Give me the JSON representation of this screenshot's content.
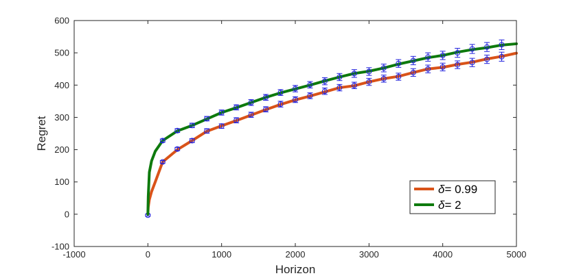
{
  "chart_data": {
    "type": "line",
    "xlabel": "Horizon",
    "ylabel": "Regret",
    "xlim": [
      -1000,
      5000
    ],
    "ylim": [
      -100,
      600
    ],
    "xticks": [
      -1000,
      0,
      1000,
      2000,
      3000,
      4000,
      5000
    ],
    "yticks": [
      -100,
      0,
      100,
      200,
      300,
      400,
      500,
      600
    ],
    "grid": false,
    "legend_position": "bottom-right",
    "errorbar_color": "#1f1fdc",
    "series": [
      {
        "name": "= 0.99",
        "legend_symbol": "δ",
        "color": "#d95319",
        "x": [
          0,
          5,
          20,
          50,
          100,
          200,
          400,
          600,
          800,
          1000,
          1200,
          1400,
          1600,
          1800,
          2000,
          2200,
          2400,
          2600,
          2800,
          3000,
          3200,
          3400,
          3600,
          3800,
          4000,
          4200,
          4400,
          4600,
          4800,
          5000
        ],
        "y": [
          0,
          22,
          45,
          70,
          100,
          162,
          200,
          228,
          257,
          274,
          290,
          307,
          324,
          340,
          354,
          366,
          379,
          392,
          398,
          410,
          420,
          427,
          439,
          450,
          455,
          464,
          471,
          481,
          489,
          499
        ],
        "errorbars": {
          "x": [
            0,
            200,
            400,
            600,
            800,
            1000,
            1200,
            1400,
            1600,
            1800,
            2000,
            2200,
            2400,
            2600,
            2800,
            3000,
            3200,
            3400,
            3600,
            3800,
            4000,
            4200,
            4400,
            4600,
            4800
          ],
          "y": [
            -3,
            162,
            202,
            228,
            258,
            273,
            291,
            308,
            325,
            341,
            355,
            367,
            381,
            392,
            399,
            410,
            420,
            426,
            439,
            450,
            456,
            463,
            470,
            480,
            488
          ],
          "err": [
            3,
            4,
            5,
            6,
            7,
            7,
            8,
            8,
            8,
            9,
            9,
            9,
            10,
            10,
            10,
            11,
            11,
            11,
            12,
            12,
            12,
            12,
            13,
            13,
            14
          ]
        }
      },
      {
        "name": "= 2",
        "legend_symbol": "δ",
        "color": "#0e7a0d",
        "x": [
          0,
          5,
          20,
          50,
          100,
          200,
          400,
          600,
          800,
          1000,
          1200,
          1400,
          1600,
          1800,
          2000,
          2200,
          2400,
          2600,
          2800,
          3000,
          3200,
          3400,
          3600,
          3800,
          4000,
          4200,
          4400,
          4600,
          4800,
          5000
        ],
        "y": [
          0,
          55,
          130,
          165,
          195,
          228,
          258,
          275,
          295,
          315,
          330,
          346,
          362,
          376,
          388,
          400,
          413,
          425,
          436,
          443,
          453,
          465,
          475,
          485,
          492,
          502,
          510,
          516,
          524,
          528
        ],
        "errorbars": {
          "x": [
            200,
            400,
            600,
            800,
            1000,
            1200,
            1400,
            1600,
            1800,
            2000,
            2200,
            2400,
            2600,
            2800,
            3000,
            3200,
            3400,
            3600,
            3800,
            4000,
            4200,
            4400,
            4600,
            4800
          ],
          "y": [
            228,
            259,
            275,
            296,
            315,
            331,
            346,
            362,
            377,
            389,
            401,
            412,
            425,
            436,
            442,
            453,
            467,
            476,
            487,
            492,
            500,
            512,
            518,
            525
          ],
          "err": [
            5,
            6,
            7,
            7,
            8,
            8,
            9,
            9,
            9,
            10,
            10,
            11,
            11,
            12,
            12,
            12,
            12,
            13,
            13,
            13,
            14,
            14,
            14,
            15
          ]
        }
      }
    ]
  }
}
